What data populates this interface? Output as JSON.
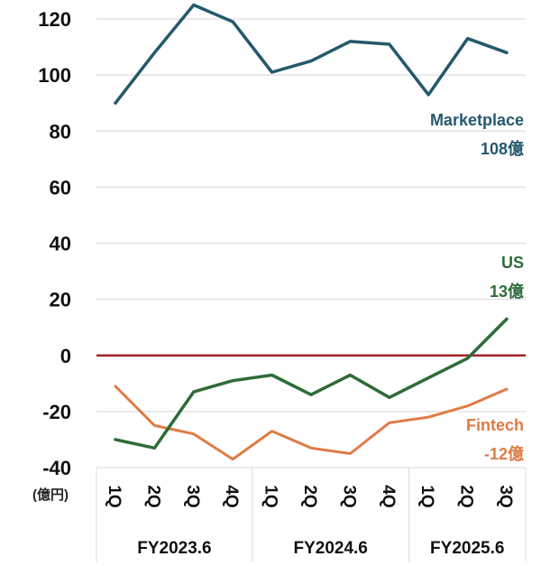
{
  "chart_data": {
    "type": "line",
    "title": "",
    "xlabel": "",
    "ylabel": "",
    "unit_label": "(億円)",
    "ylim": [
      -40,
      120
    ],
    "yticks": [
      120,
      100,
      80,
      60,
      40,
      20,
      0,
      -20,
      -40
    ],
    "grid": true,
    "zero_line_color": "#a0242a",
    "categories": [
      "1Q",
      "2Q",
      "3Q",
      "4Q",
      "1Q",
      "2Q",
      "3Q",
      "4Q",
      "1Q",
      "2Q",
      "3Q"
    ],
    "groups": [
      {
        "label": "FY2023.6",
        "count": 4
      },
      {
        "label": "FY2024.6",
        "count": 4
      },
      {
        "label": "FY2025.6",
        "count": 3
      }
    ],
    "series": [
      {
        "name": "Marketplace",
        "color": "#23596b",
        "values": [
          90,
          108,
          125,
          119,
          101,
          105,
          112,
          111,
          93,
          113,
          108
        ],
        "annotation": [
          "Marketplace",
          "108億"
        ]
      },
      {
        "name": "US",
        "color": "#2e6b38",
        "values": [
          -30,
          -33,
          -13,
          -9,
          -7,
          -14,
          -7,
          -15,
          -8,
          -1,
          13
        ],
        "annotation": [
          "US",
          "13億"
        ]
      },
      {
        "name": "Fintech",
        "color": "#e07b45",
        "values": [
          -11,
          -25,
          -28,
          -37,
          -27,
          -33,
          -35,
          -24,
          -22,
          -18,
          -12
        ],
        "annotation": [
          "Fintech",
          "-12億"
        ]
      }
    ],
    "legend": "inline-right"
  }
}
